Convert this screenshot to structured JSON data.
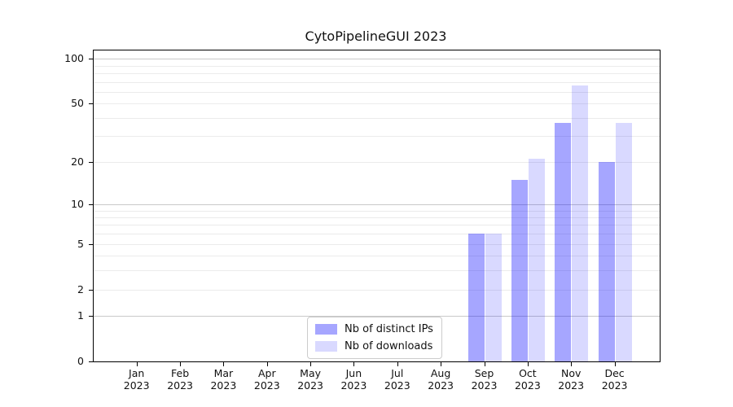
{
  "figure": {
    "title": "CytoPipelineGUI 2023"
  },
  "chart_data": {
    "type": "bar",
    "title": "CytoPipelineGUI 2023",
    "categories": [
      "Jan",
      "Feb",
      "Mar",
      "Apr",
      "May",
      "Jun",
      "Jul",
      "Aug",
      "Sep",
      "Oct",
      "Nov",
      "Dec"
    ],
    "category_year": "2023",
    "series": [
      {
        "name": "Nb of distinct IPs",
        "color": "#0000ff",
        "alpha": 0.35,
        "values": [
          0,
          0,
          0,
          0,
          0,
          0,
          0,
          0,
          6,
          15,
          37,
          20
        ]
      },
      {
        "name": "Nb of downloads",
        "color": "#0000ff",
        "alpha": 0.15,
        "values": [
          0,
          0,
          0,
          0,
          0,
          0,
          0,
          0,
          6,
          21,
          66,
          37
        ]
      }
    ],
    "y_axis": {
      "scale": "log1p",
      "ticks": [
        0,
        1,
        2,
        5,
        10,
        20,
        50,
        100
      ],
      "major_gridlines": [
        1,
        10,
        100
      ],
      "minor_gridlines": [
        2,
        3,
        4,
        5,
        6,
        7,
        8,
        9,
        20,
        30,
        40,
        50,
        60,
        70,
        80,
        90
      ],
      "ylim": [
        0,
        113.5
      ]
    },
    "x_axis": {
      "ticks_visible": true
    },
    "legend": {
      "position": "lower center"
    },
    "grid": true,
    "colors": {
      "major_grid": "#c9c9c9",
      "minor_grid": "#ebebeb",
      "spine": "#000000",
      "background": "#ffffff"
    }
  }
}
